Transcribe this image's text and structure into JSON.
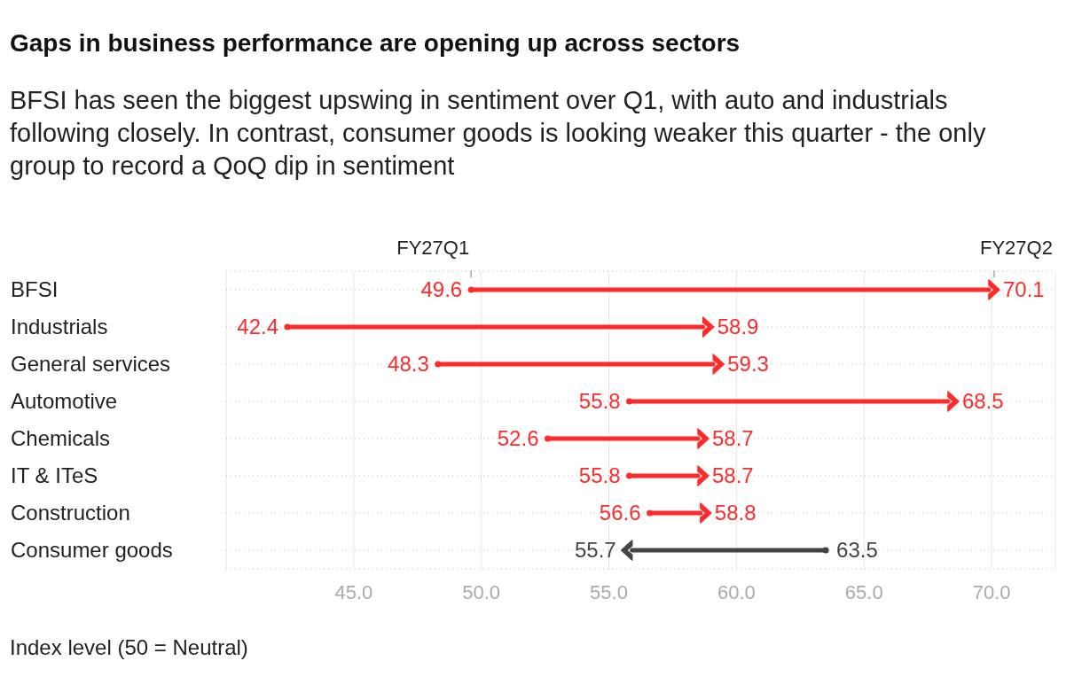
{
  "chart_data": {
    "type": "scatter",
    "orientation": "horizontal",
    "title": "Gaps in business performance are opening up across sectors",
    "subtitle": "BFSI has seen the biggest upswing in sentiment over Q1, with auto and industrials following closely. In contrast, consumer goods is looking weaker this quarter - the only group to record a QoQ dip in sentiment",
    "annotations": [
      "Index level (50 = Neutral)"
    ],
    "categories": [
      "BFSI",
      "Industrials",
      "General services",
      "Automotive",
      "Chemicals",
      "IT & ITeS",
      "Construction",
      "Consumer goods"
    ],
    "series": [
      {
        "name": "FY27Q1",
        "colors": [
          "#ff2b2b",
          "#ff2b2b",
          "#ff2b2b",
          "#ff2b2b",
          "#ff2b2b",
          "#ff2b2b",
          "#ff2b2b",
          "#444444"
        ],
        "values": [
          49.6,
          42.4,
          48.3,
          55.8,
          52.6,
          55.8,
          56.6,
          63.5
        ]
      },
      {
        "name": "FY27Q2",
        "colors": [
          "#ff2b2b",
          "#ff2b2b",
          "#ff2b2b",
          "#ff2b2b",
          "#ff2b2b",
          "#ff2b2b",
          "#ff2b2b",
          "#444444"
        ],
        "values": [
          70.1,
          58.9,
          59.3,
          68.5,
          58.7,
          58.7,
          58.8,
          55.7
        ]
      }
    ],
    "xlim": [
      40,
      72.5
    ],
    "xticks": [
      {
        "value": 45,
        "label": "45.0"
      },
      {
        "value": 50,
        "label": "50.0"
      },
      {
        "value": 55,
        "label": "55.0"
      },
      {
        "value": 60,
        "label": "60.0"
      },
      {
        "value": 65,
        "label": "65.0"
      },
      {
        "value": 70,
        "label": "70.0"
      }
    ],
    "grid": true,
    "data_labels": true
  }
}
